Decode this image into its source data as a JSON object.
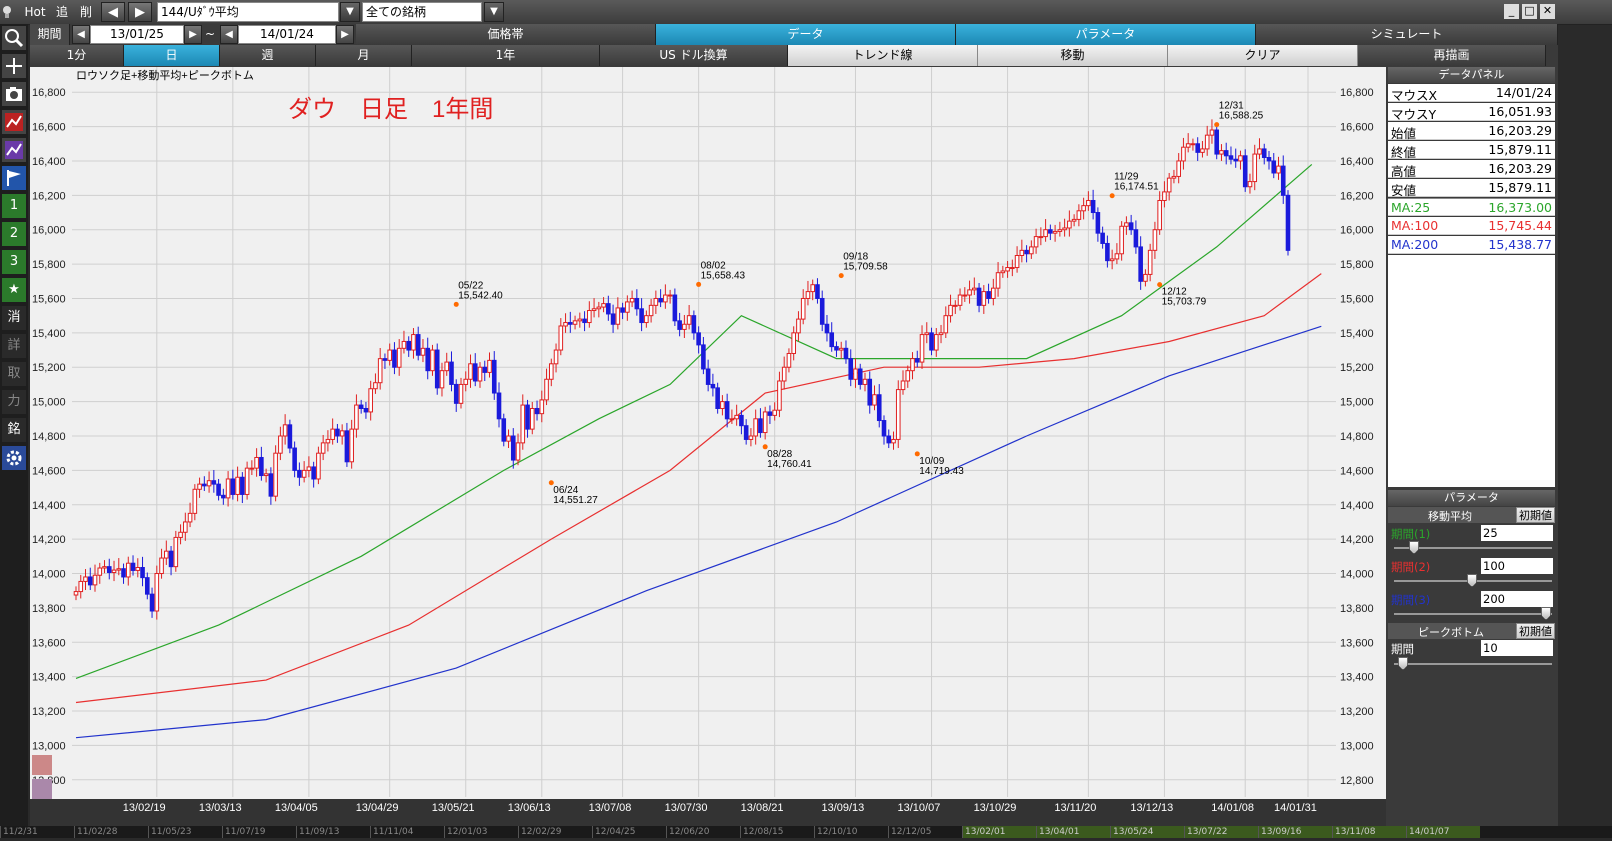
{
  "topbar": {
    "hot": "Hot",
    "add": "追",
    "del": "削",
    "symbol": "144/Uﾀﾞｳ平均",
    "group": "全ての銘柄",
    "window_controls": [
      "minimize-icon",
      "maximize-icon",
      "close-icon"
    ]
  },
  "row2": {
    "period_label": "期間",
    "date_from": "13/01/25",
    "tilde": "~",
    "date_to": "14/01/24",
    "tabs": [
      {
        "label": "価格帯",
        "active": false
      },
      {
        "label": "データ",
        "active": true
      },
      {
        "label": "パラメータ",
        "active": true
      },
      {
        "label": "シミュレート",
        "active": false
      }
    ]
  },
  "row3": {
    "buttons": [
      {
        "label": "1分",
        "active": false,
        "light": false
      },
      {
        "label": "日",
        "active": true,
        "light": false
      },
      {
        "label": "週",
        "active": false,
        "light": false
      },
      {
        "label": "月",
        "active": false,
        "light": false
      },
      {
        "label": "1年",
        "active": false,
        "light": false
      },
      {
        "label": "US ドル換算",
        "active": false,
        "light": false
      },
      {
        "label": "トレンド線",
        "active": false,
        "light": true
      },
      {
        "label": "移動",
        "active": false,
        "light": true
      },
      {
        "label": "クリア",
        "active": false,
        "light": true
      },
      {
        "label": "再描画",
        "active": false,
        "light": false
      }
    ]
  },
  "lefttoolbar": [
    {
      "icon": "search-icon",
      "text": ""
    },
    {
      "icon": "plus-icon",
      "text": ""
    },
    {
      "icon": "camera-icon",
      "text": ""
    },
    {
      "icon": "chart-red-icon",
      "text": ""
    },
    {
      "icon": "chart-purple-icon",
      "text": ""
    },
    {
      "icon": "flag-icon",
      "text": ""
    },
    {
      "icon": "number-icon",
      "text": "1"
    },
    {
      "icon": "number-icon",
      "text": "2"
    },
    {
      "icon": "number-icon",
      "text": "3"
    },
    {
      "icon": "star-icon",
      "text": "★"
    },
    {
      "icon": "text-icon",
      "text": "消"
    },
    {
      "icon": "text-icon",
      "text": "詳"
    },
    {
      "icon": "text-icon",
      "text": "取"
    },
    {
      "icon": "text-icon",
      "text": "力"
    },
    {
      "icon": "text-icon",
      "text": "銘"
    },
    {
      "icon": "gear-icon",
      "text": ""
    }
  ],
  "chart_data": {
    "type": "candlestick",
    "subtitle": "ロウソク足+移動平均+ピークボトム",
    "title": "ダウ　日足　1年間",
    "ylim": [
      12700,
      16900
    ],
    "y_ticks": [
      "16,800",
      "16,600",
      "16,400",
      "16,200",
      "16,000",
      "15,800",
      "15,600",
      "15,400",
      "15,200",
      "15,000",
      "14,800",
      "14,600",
      "14,400",
      "14,200",
      "14,000",
      "13,800",
      "13,600",
      "13,400",
      "13,200",
      "13,000",
      "12,800"
    ],
    "x_ticks": [
      "13/02/19",
      "13/03/13",
      "13/04/05",
      "13/04/29",
      "13/05/21",
      "13/06/13",
      "13/07/08",
      "13/07/30",
      "13/08/21",
      "13/09/13",
      "13/10/07",
      "13/10/29",
      "13/11/20",
      "13/12/13",
      "14/01/08",
      "14/01/31"
    ],
    "closes": [
      13895,
      13954,
      13980,
      13934,
      13990,
      14032,
      14040,
      14006,
      14020,
      14028,
      13980,
      14060,
      14018,
      14035,
      13976,
      13880,
      13782,
      14000,
      14090,
      14130,
      14040,
      14210,
      14240,
      14300,
      14350,
      14490,
      14520,
      14510,
      14540,
      14520,
      14455,
      14440,
      14550,
      14460,
      14560,
      14460,
      14613,
      14613,
      14675,
      14570,
      14580,
      14450,
      14700,
      14800,
      14865,
      14730,
      14600,
      14560,
      14600,
      14620,
      14550,
      14700,
      14760,
      14780,
      14840,
      14800,
      14830,
      14650,
      14840,
      14980,
      14960,
      14940,
      15075,
      15110,
      15250,
      15240,
      15300,
      15200,
      15310,
      15350,
      15300,
      15390,
      15270,
      15310,
      15180,
      15300,
      15080,
      15180,
      15230,
      15100,
      14990,
      15100,
      15130,
      15220,
      15120,
      15200,
      15170,
      15240,
      15050,
      14900,
      14770,
      14800,
      14660,
      14760,
      14980,
      14840,
      14960,
      14930,
      15010,
      15130,
      15220,
      15300,
      15440,
      15460,
      15450,
      15470,
      15480,
      15460,
      15530,
      15540,
      15550,
      15570,
      15510,
      15450,
      15545,
      15520,
      15580,
      15600,
      15540,
      15460,
      15500,
      15560,
      15600,
      15580,
      15620,
      15620,
      15470,
      15420,
      15450,
      15500,
      15400,
      15330,
      15190,
      15100,
      15080,
      14960,
      15000,
      14900,
      14900,
      14920,
      14860,
      14780,
      14800,
      14900,
      14820,
      14940,
      14920,
      14950,
      15120,
      15200,
      15280,
      15400,
      15480,
      15600,
      15640,
      15680,
      15600,
      15450,
      15400,
      15320,
      15300,
      15310,
      15250,
      15130,
      15190,
      15100,
      15130,
      14980,
      15040,
      14890,
      14800,
      14760,
      14780,
      15070,
      15120,
      15180,
      15250,
      15230,
      15390,
      15400,
      15300,
      15390,
      15400,
      15500,
      15560,
      15560,
      15620,
      15620,
      15650,
      15660,
      15560,
      15640,
      15600,
      15660,
      15750,
      15760,
      15780,
      15780,
      15850,
      15880,
      15860,
      15900,
      15960,
      15960,
      16000,
      15980,
      15990,
      16000,
      16010,
      16050,
      16060,
      16110,
      16140,
      16170,
      16100,
      15980,
      15920,
      15820,
      15830,
      15860,
      16020,
      16040,
      16000,
      15900,
      15700,
      15740,
      15880,
      16000,
      16170,
      16220,
      16300,
      16310,
      16400,
      16480,
      16500,
      16500,
      16450,
      16470,
      16550,
      16580,
      16440,
      16460,
      16430,
      16410,
      16400,
      16430,
      16250,
      16280,
      16440,
      16470,
      16420,
      16400,
      16330,
      16370,
      16200,
      15880
    ],
    "ma_series": [
      {
        "name": "MA:25",
        "color": "#2ba62b",
        "value": "16,373.00",
        "start": 13390,
        "end": 16373
      },
      {
        "name": "MA:100",
        "color": "#e83030",
        "value": "15,745.44",
        "start": 13250,
        "end": 15745
      },
      {
        "name": "MA:200",
        "color": "#2233cc",
        "value": "15,438.77",
        "start": 13045,
        "end": 15438
      }
    ],
    "peaks": [
      {
        "date": "05/22",
        "value": "15,542.40",
        "pos": "top"
      },
      {
        "date": "06/24",
        "value": "14,551.27",
        "pos": "bottom"
      },
      {
        "date": "08/02",
        "value": "15,658.43",
        "pos": "top"
      },
      {
        "date": "08/28",
        "value": "14,760.41",
        "pos": "bottom"
      },
      {
        "date": "09/18",
        "value": "15,709.58",
        "pos": "top"
      },
      {
        "date": "10/09",
        "value": "14,719.43",
        "pos": "bottom"
      },
      {
        "date": "11/29",
        "value": "16,174.51",
        "pos": "top"
      },
      {
        "date": "12/12",
        "value": "15,703.79",
        "pos": "bottom"
      },
      {
        "date": "12/31",
        "value": "16,588.25",
        "pos": "top"
      }
    ]
  },
  "navigator_ticks": [
    "11/2/31",
    "11/02/28",
    "11/05/23",
    "11/07/19",
    "11/09/13",
    "11/11/04",
    "12/01/03",
    "12/02/29",
    "12/04/25",
    "12/06/20",
    "12/08/15",
    "12/10/10",
    "12/12/05",
    "13/02/01",
    "13/04/01",
    "13/05/24",
    "13/07/22",
    "13/09/16",
    "13/11/08",
    "14/01/07"
  ],
  "panel": {
    "data_header": "データパネル",
    "rows": [
      {
        "k": "マウスX",
        "v": "14/01/24",
        "color": "#000000"
      },
      {
        "k": "マウスY",
        "v": "16,051.93",
        "color": "#000000"
      },
      {
        "k": "始値",
        "v": "16,203.29",
        "color": "#000000"
      },
      {
        "k": "終値",
        "v": "15,879.11",
        "color": "#000000"
      },
      {
        "k": "高値",
        "v": "16,203.29",
        "color": "#000000"
      },
      {
        "k": "安値",
        "v": "15,879.11",
        "color": "#000000"
      },
      {
        "k": "MA:25",
        "v": "16,373.00",
        "color": "#2ba62b"
      },
      {
        "k": "MA:100",
        "v": "15,745.44",
        "color": "#e83030"
      },
      {
        "k": "MA:200",
        "v": "15,438.77",
        "color": "#2233cc"
      }
    ],
    "param_header": "パラメータ",
    "ma_title": "移動平均",
    "reset": "初期値",
    "periods": [
      {
        "label": "期間(1)",
        "value": "25",
        "color": "#2ba62b",
        "level": 0.1
      },
      {
        "label": "期間(2)",
        "value": "100",
        "color": "#e83030",
        "level": 0.49
      },
      {
        "label": "期間(3)",
        "value": "200",
        "color": "#2233cc",
        "level": 0.99
      }
    ],
    "pb_title": "ピークボトム",
    "pb_period_label": "期間",
    "pb_period_value": "10",
    "pb_level": 0.03
  }
}
